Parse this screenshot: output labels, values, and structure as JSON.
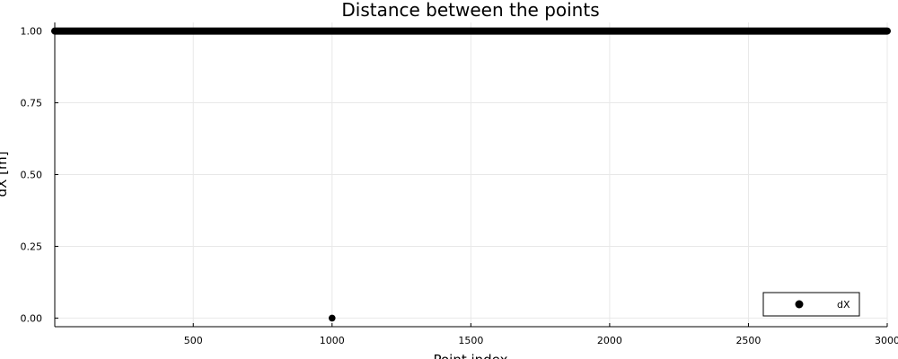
{
  "chart_data": {
    "type": "scatter",
    "title": "Distance between the points",
    "xlabel": "Point index",
    "ylabel": "dX [m]",
    "xlim": [
      1,
      3000
    ],
    "ylim": [
      -0.03,
      1.03
    ],
    "x_ticks": [
      500,
      1000,
      1500,
      2000,
      2500,
      3000
    ],
    "y_ticks": [
      0.0,
      0.25,
      0.5,
      0.75,
      1.0
    ],
    "x_tick_labels": [
      "500",
      "1000",
      "1500",
      "2000",
      "2500",
      "3000"
    ],
    "y_tick_labels": [
      "0.00",
      "0.25",
      "0.50",
      "0.75",
      "1.00"
    ],
    "grid": true,
    "legend": {
      "position": "bottom-right",
      "entries": [
        "dX"
      ]
    },
    "series": [
      {
        "name": "dX",
        "color": "#000000",
        "marker": "circle",
        "points": [
          {
            "x": 1000,
            "y": 0.0
          }
        ],
        "constant_run": {
          "x_start": 1,
          "x_end": 3000,
          "y": 1.0
        }
      }
    ]
  }
}
